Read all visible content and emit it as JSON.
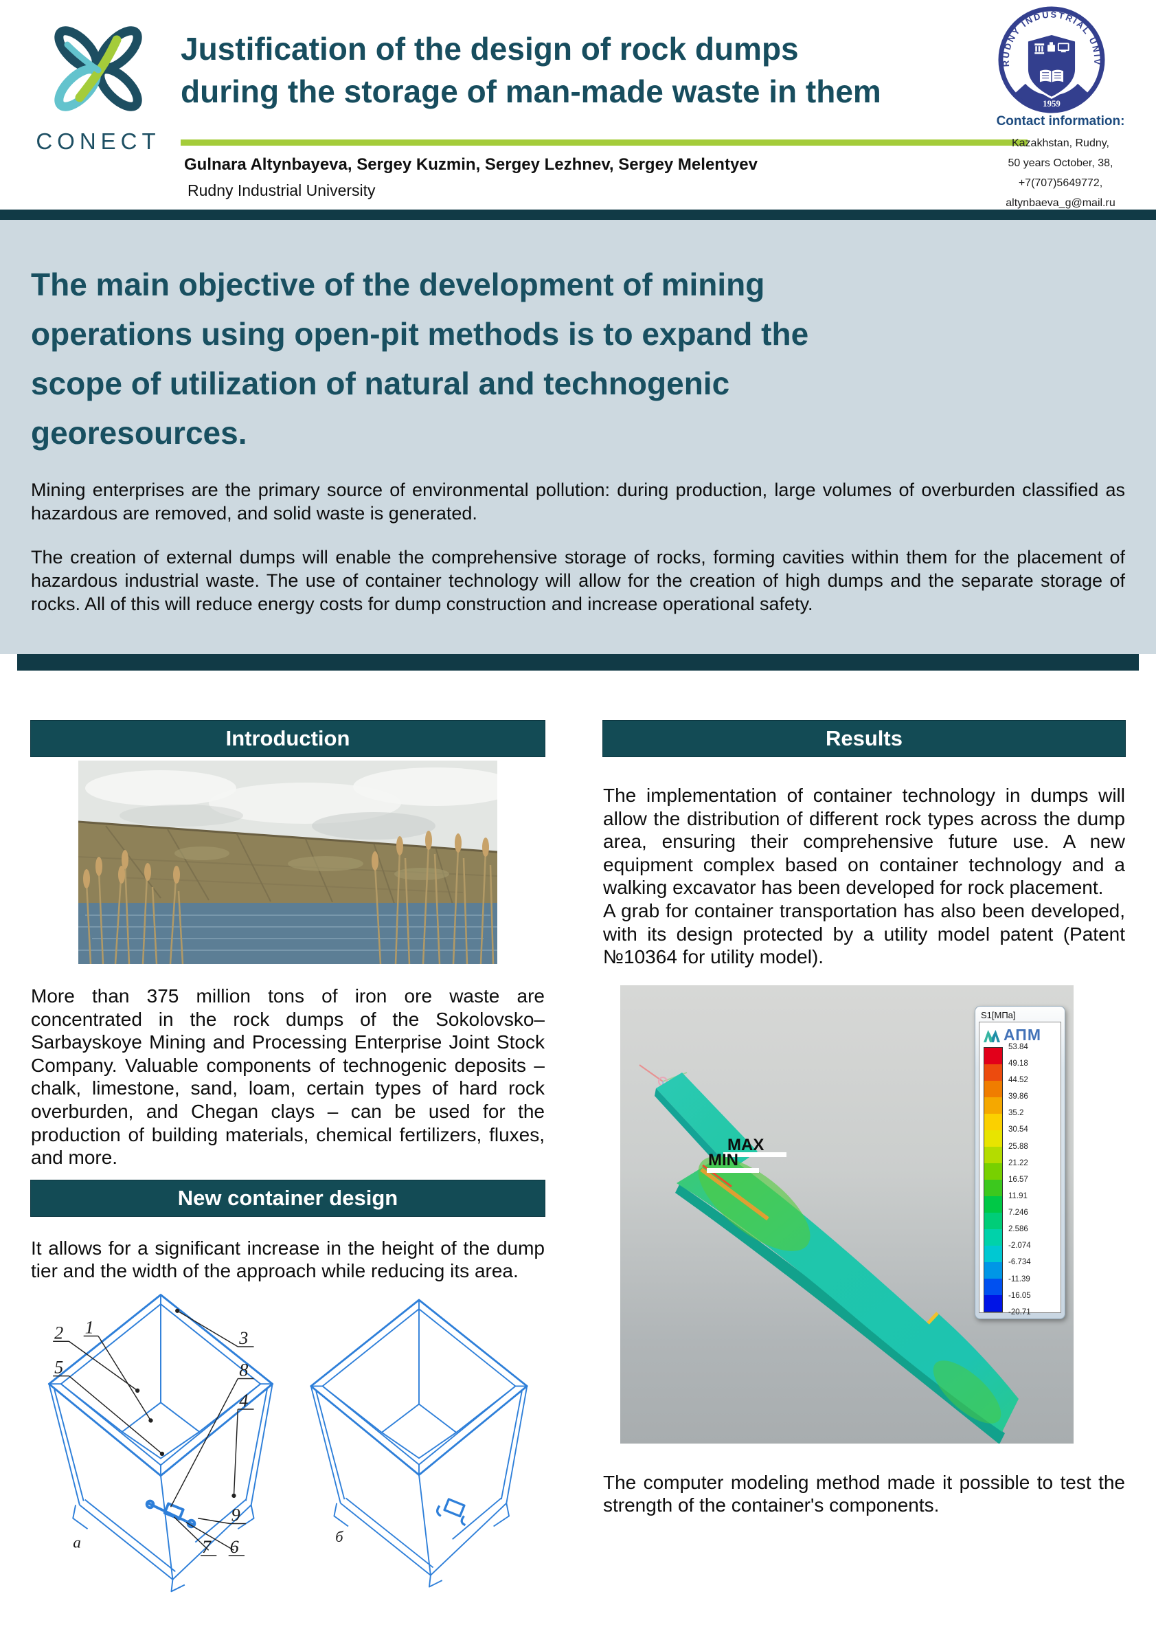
{
  "header": {
    "logo_text": "CONECT",
    "title_lines": [
      "Justification of the design of rock dumps",
      "during the storage of man-made waste in them"
    ],
    "authors": "Gulnara Altynbayeva, Sergey Kuzmin, Sergey Lezhnev, Sergey Melentyev",
    "affiliation": "Rudny Industrial University",
    "seal": {
      "ring_text": "RUDNY  INDUSTRIAL  UNIVERSITY",
      "year": "1959"
    },
    "contact": {
      "heading": "Contact information:",
      "lines": [
        "Kazakhstan, Rudny,",
        "50 years October, 38,",
        "+7(707)5649772,",
        "altynbaeva_g@mail.ru"
      ]
    }
  },
  "abstract": {
    "heading_lines": [
      "The main objective of the development of mining",
      "operations using open-pit methods is to expand the",
      "scope of utilization of natural and technogenic",
      "georesources."
    ],
    "paragraphs": [
      "Mining enterprises are the primary source of environmental pollution: during production, large volumes of overburden classified as hazardous are removed, and solid waste is generated.",
      "The creation of external dumps will enable the comprehensive storage of rocks, forming cavities within them for the placement of hazardous industrial waste. The use of container technology will allow for the creation of high dumps and the separate storage of rocks. All of this will reduce energy costs for dump construction and increase operational safety."
    ]
  },
  "left": {
    "intro": {
      "title": "Introduction",
      "body": "More than 375 million tons of iron ore waste are concentrated in the rock dumps of the Sokolovsko–Sarbayskoye Mining and Processing Enterprise Joint Stock Company. Valuable components of technogenic deposits – chalk, limestone, sand, loam, certain types of hard rock overburden, and Chegan clays – can be used for the production of building materials, chemical fertilizers, fluxes, and more."
    },
    "new_container": {
      "title": "New container design",
      "body": "It allows for a significant increase in the height of the dump tier and the width of the approach while reducing its area."
    },
    "diagram": {
      "numbers": [
        "1",
        "2",
        "3",
        "4",
        "5",
        "6",
        "7",
        "8",
        "9"
      ],
      "sub_left": "а",
      "sub_right": "б"
    }
  },
  "right": {
    "results": {
      "title": "Results",
      "p1": "The implementation of container technology in dumps will allow the distribution of different rock types across the dump area, ensuring their comprehensive future use. A new equipment complex based on container technology and a walking excavator has been developed for rock placement.",
      "p2": "A grab for container transportation has also been developed, with its design protected by a utility model patent (Patent №10364 for utility model)."
    },
    "caption": "The computer modeling method made it possible to test the strength of the container's components."
  },
  "figure": {
    "max_label": "MAX",
    "min_label": "MIN",
    "legend": {
      "title": "S1[МПа]",
      "brand": "АПМ",
      "values": [
        "53.84",
        "49.18",
        "44.52",
        "39.86",
        "35.2",
        "30.54",
        "25.88",
        "21.22",
        "16.57",
        "11.91",
        "7.246",
        "2.586",
        "-2.074",
        "-6.734",
        "-11.39",
        "-16.05",
        "-20.71"
      ],
      "colors": [
        "#e2001a",
        "#ec4b0e",
        "#f07d00",
        "#f5a800",
        "#fbd000",
        "#e8e400",
        "#b4dc00",
        "#78d000",
        "#3cc81e",
        "#00c846",
        "#00cd78",
        "#00d2aa",
        "#00c8d2",
        "#0096e6",
        "#0050f0",
        "#0014e6"
      ]
    }
  },
  "colors": {
    "teal": "#174d5e",
    "bar": "#134b55",
    "green": "#a4cc3a",
    "panel": "#cdd9e0",
    "navy": "#333f8e"
  }
}
